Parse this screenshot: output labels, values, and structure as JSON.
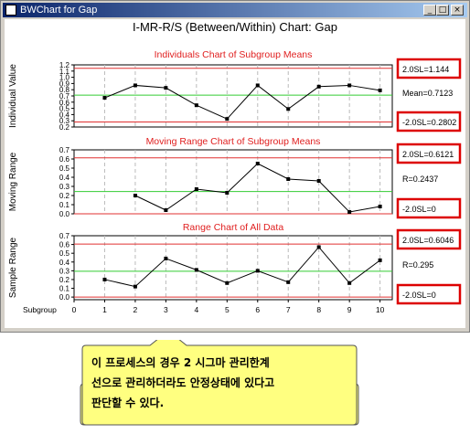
{
  "window": {
    "title": "BWChart for Gap",
    "min_label": "_",
    "max_label": "□",
    "close_label": "×"
  },
  "chart_title": "I-MR-R/S (Between/Within) Chart: Gap",
  "x_axis": {
    "label": "Subgroup",
    "ticks": [
      0,
      1,
      2,
      3,
      4,
      5,
      6,
      7,
      8,
      9,
      10
    ],
    "range": [
      0,
      10.4
    ]
  },
  "colors": {
    "limit": "#e03030",
    "center": "#33cc33",
    "line": "#000000",
    "grid": "#bbbbbb",
    "highlight": "#dd0000",
    "title": "#e02020"
  },
  "chart_data": [
    {
      "type": "line",
      "title": "Individuals Chart of Subgroup Means",
      "ylabel": "Individual Value",
      "yticks": [
        "0.2",
        "0.3",
        "0.4",
        "0.5",
        "0.6",
        "0.7",
        "0.8",
        "0.9",
        "1.0",
        "1.1",
        "1.2"
      ],
      "ylim": [
        0.2,
        1.2
      ],
      "x": [
        1,
        2,
        3,
        4,
        5,
        6,
        7,
        8,
        9,
        10
      ],
      "values": [
        0.67,
        0.87,
        0.83,
        0.55,
        0.33,
        0.87,
        0.49,
        0.85,
        0.87,
        0.79
      ],
      "ucl": 1.144,
      "center": 0.7123,
      "lcl": 0.2802,
      "ucl_label": "2.0SL=1.144",
      "center_label": "Mean=0.7123",
      "lcl_label": "-2.0SL=0.2802"
    },
    {
      "type": "line",
      "title": "Moving Range Chart of Subgroup Means",
      "ylabel": "Moving Range",
      "yticks": [
        "0.0",
        "0.1",
        "0.2",
        "0.3",
        "0.4",
        "0.5",
        "0.6",
        "0.7"
      ],
      "ylim": [
        0,
        0.7
      ],
      "x": [
        2,
        3,
        4,
        5,
        6,
        7,
        8,
        9,
        10
      ],
      "values": [
        0.2,
        0.04,
        0.27,
        0.23,
        0.55,
        0.38,
        0.36,
        0.02,
        0.08
      ],
      "ucl": 0.6121,
      "center": 0.2437,
      "lcl": 0,
      "ucl_label": "2.0SL=0.6121",
      "center_label": "R=0.2437",
      "lcl_label": "-2.0SL=0"
    },
    {
      "type": "line",
      "title": "Range Chart of All Data",
      "ylabel": "Sample Range",
      "yticks": [
        "0.0",
        "0.1",
        "0.2",
        "0.3",
        "0.4",
        "0.5",
        "0.6",
        "0.7"
      ],
      "ylim": [
        -0.03,
        0.7
      ],
      "x": [
        1,
        2,
        3,
        4,
        5,
        6,
        7,
        8,
        9,
        10
      ],
      "values": [
        0.2,
        0.12,
        0.44,
        0.31,
        0.16,
        0.3,
        0.17,
        0.57,
        0.16,
        0.42
      ],
      "ucl": 0.6046,
      "center": 0.295,
      "lcl": 0,
      "ucl_label": "2.0SL=0.6046",
      "center_label": "R=0.295",
      "lcl_label": "-2.0SL=0"
    }
  ],
  "callout": {
    "lines": [
      "이 프로세스의 경우 2 시그마 관리한계",
      "선으로 관리하더라도 안정상태에 있다고",
      "판단할 수 있다."
    ]
  }
}
